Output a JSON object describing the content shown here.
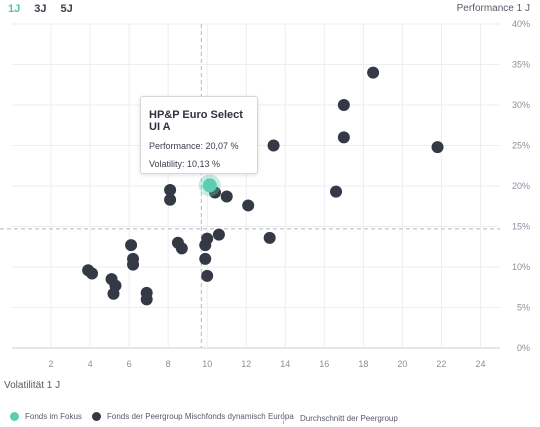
{
  "tabs": [
    {
      "label": "1J"
    },
    {
      "label": "3J"
    },
    {
      "label": "5J"
    }
  ],
  "colors": {
    "focus": "#5ccdb0",
    "peer": "#353945",
    "accent": "#4fc7a8"
  },
  "tooltip": {
    "title": "HP&P Euro Select UI A",
    "performance": "Performance: 20,07 %",
    "volatility": "Volatility: 10,13 %"
  },
  "legend": {
    "focus": "Fonds im Fokus",
    "peer": "Fonds der Peergroup Mischfonds dynamisch Europa",
    "average": "Durchschnitt der Peergroup"
  },
  "chart_data": {
    "type": "scatter",
    "xlabel": "Volatilität 1 J",
    "ylabel": "Performance 1 J",
    "xlim": [
      0,
      25
    ],
    "ylim": [
      0,
      40
    ],
    "x_ticks": [
      "2",
      "4",
      "6",
      "8",
      "10",
      "12",
      "14",
      "16",
      "18",
      "20",
      "22",
      "24"
    ],
    "y_ticks": [
      "0%",
      "5%",
      "10%",
      "15%",
      "20%",
      "25%",
      "30%",
      "35%",
      "40%"
    ],
    "grid": true,
    "legend_position": "bottom",
    "averages": {
      "x": 9.7,
      "y": 14.7
    },
    "focus": {
      "x": 10.13,
      "y": 20.07
    },
    "series": [
      {
        "values": [
          [
            18.5,
            34.0
          ],
          [
            17.0,
            30.0
          ],
          [
            17.0,
            26.0
          ],
          [
            21.8,
            24.8
          ],
          [
            13.4,
            25.0
          ],
          [
            16.6,
            19.3
          ],
          [
            12.1,
            17.6
          ],
          [
            11.0,
            18.7
          ],
          [
            10.4,
            19.2
          ],
          [
            8.1,
            19.5
          ],
          [
            8.1,
            18.3
          ],
          [
            8.5,
            13.0
          ],
          [
            8.7,
            12.3
          ],
          [
            10.6,
            14.0
          ],
          [
            10.0,
            13.5
          ],
          [
            9.9,
            12.7
          ],
          [
            9.9,
            11.0
          ],
          [
            10.0,
            8.9
          ],
          [
            13.2,
            13.6
          ],
          [
            6.1,
            12.7
          ],
          [
            6.2,
            11.0
          ],
          [
            6.2,
            10.3
          ],
          [
            3.9,
            9.6
          ],
          [
            4.1,
            9.2
          ],
          [
            5.1,
            8.5
          ],
          [
            5.3,
            7.7
          ],
          [
            5.2,
            6.7
          ],
          [
            6.9,
            6.8
          ],
          [
            6.9,
            6.0
          ]
        ]
      }
    ]
  }
}
